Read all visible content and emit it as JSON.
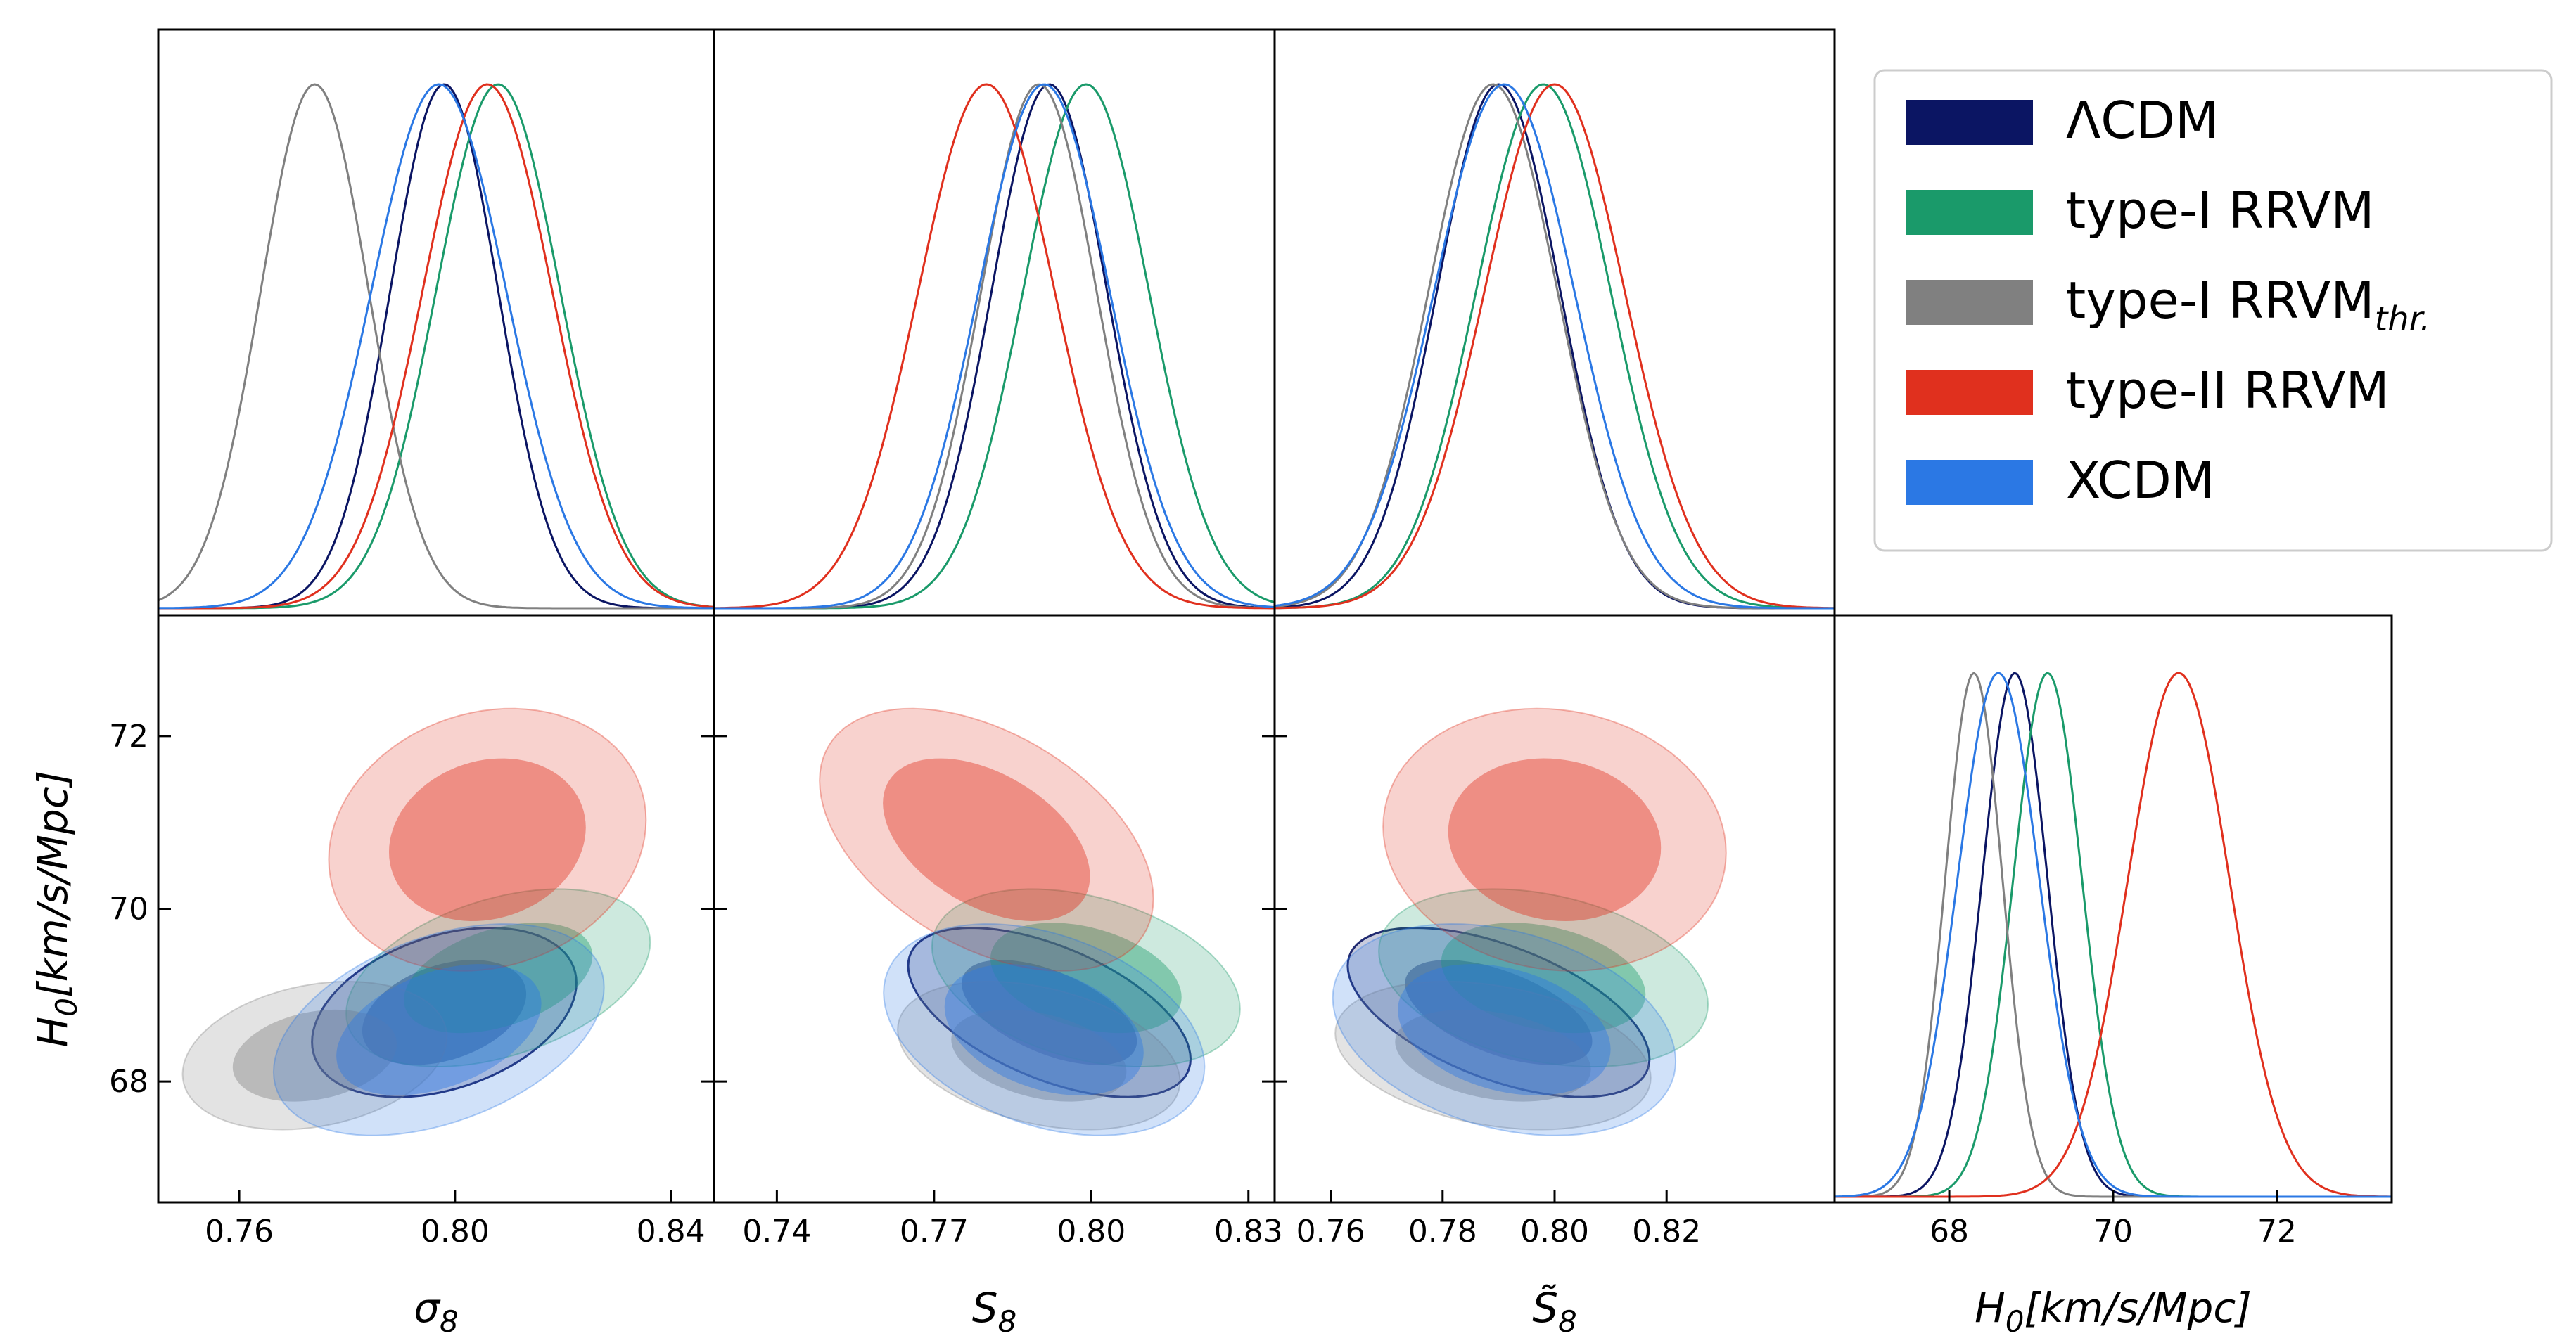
{
  "chart_data": {
    "type": "triangle_corner_plot",
    "description_free": true,
    "axes": {
      "sigma8": {
        "label": "σ8",
        "range": [
          0.745,
          0.848
        ],
        "ticks": [
          0.76,
          0.8,
          0.84
        ]
      },
      "S8": {
        "label": "S8",
        "range": [
          0.728,
          0.835
        ],
        "ticks": [
          0.74,
          0.77,
          0.8,
          0.83
        ]
      },
      "S8tilde": {
        "label": "S̃8",
        "range": [
          0.75,
          0.85
        ],
        "ticks": [
          0.76,
          0.78,
          0.8,
          0.82
        ]
      },
      "H0": {
        "label": "H0[km/s/Mpc]",
        "range": [
          66.6,
          73.4
        ],
        "ticks": [
          68,
          70,
          72
        ]
      }
    },
    "series": [
      {
        "name": "ΛCDM",
        "color": "#0b1563",
        "mean": {
          "sigma8": 0.798,
          "S8": 0.792,
          "S8tilde": 0.79,
          "H0": 68.8
        },
        "sd": {
          "sigma8": 0.01,
          "S8": 0.011,
          "S8tilde": 0.011,
          "H0": 0.4
        },
        "corr": {
          "sigma8": 0.35,
          "S8": -0.55,
          "S8tilde": -0.55
        }
      },
      {
        "name": "type-I RRVM",
        "color": "#1a9a6a",
        "mean": {
          "sigma8": 0.808,
          "S8": 0.799,
          "S8tilde": 0.798,
          "H0": 69.2
        },
        "sd": {
          "sigma8": 0.0115,
          "S8": 0.012,
          "S8tilde": 0.012,
          "H0": 0.42
        },
        "corr": {
          "sigma8": 0.4,
          "S8": -0.35,
          "S8tilde": -0.3
        }
      },
      {
        "name": "type-I RRVM",
        "subscript": "thr.",
        "color": "#808080",
        "mean": {
          "sigma8": 0.774,
          "S8": 0.79,
          "S8tilde": 0.789,
          "H0": 68.3
        },
        "sd": {
          "sigma8": 0.01,
          "S8": 0.011,
          "S8tilde": 0.0115,
          "H0": 0.35
        },
        "corr": {
          "sigma8": 0.25,
          "S8": -0.35,
          "S8tilde": -0.3
        }
      },
      {
        "name": "type-II RRVM",
        "color": "#e0301e",
        "mean": {
          "sigma8": 0.806,
          "S8": 0.78,
          "S8tilde": 0.8,
          "H0": 70.8
        },
        "sd": {
          "sigma8": 0.012,
          "S8": 0.013,
          "S8tilde": 0.0125,
          "H0": 0.62
        },
        "corr": {
          "sigma8": 0.15,
          "S8": -0.45,
          "S8tilde": -0.1
        }
      },
      {
        "name": "XCDM",
        "color": "#2b78e4",
        "mean": {
          "sigma8": 0.797,
          "S8": 0.791,
          "S8tilde": 0.791,
          "H0": 68.6
        },
        "sd": {
          "sigma8": 0.0125,
          "S8": 0.0125,
          "S8tilde": 0.0125,
          "H0": 0.5
        },
        "corr": {
          "sigma8": 0.4,
          "S8": -0.35,
          "S8tilde": -0.3
        }
      }
    ]
  }
}
